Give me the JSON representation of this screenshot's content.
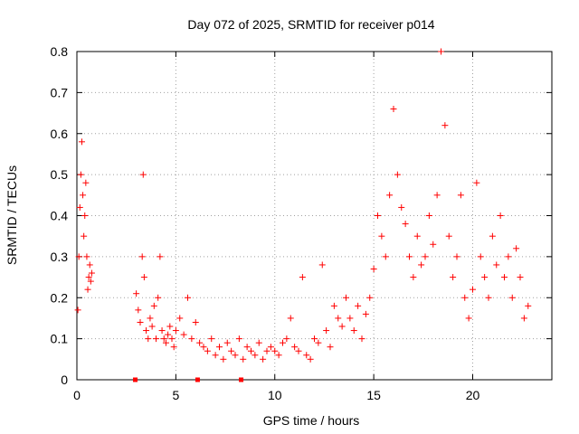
{
  "chart_data": {
    "type": "scatter",
    "title": "Day 072 of 2025, SRMTID for receiver p014",
    "xlabel": "GPS time / hours",
    "ylabel": "SRMTID / TECUs",
    "xlim": [
      0,
      24
    ],
    "ylim": [
      0,
      0.8
    ],
    "xticks": [
      0,
      5,
      10,
      15,
      20
    ],
    "xtick_labels": [
      "0",
      "5",
      "10",
      "15",
      "20"
    ],
    "yticks": [
      0,
      0.1,
      0.2,
      0.3,
      0.4,
      0.5,
      0.6,
      0.7,
      0.8
    ],
    "ytick_labels": [
      "0",
      "0.1",
      "0.2",
      "0.3",
      "0.4",
      "0.5",
      "0.6",
      "0.7",
      "0.8"
    ],
    "grid": true,
    "marker": "+",
    "color": "#ff0000",
    "gap_markers_x": [
      2.95,
      6.1,
      8.3
    ],
    "series": [
      {
        "name": "SRMTID",
        "x": [
          0.05,
          0.1,
          0.15,
          0.2,
          0.25,
          0.3,
          0.35,
          0.4,
          0.45,
          0.5,
          0.55,
          0.6,
          0.65,
          0.7,
          0.75,
          3.0,
          3.1,
          3.2,
          3.3,
          3.35,
          3.4,
          3.5,
          3.6,
          3.7,
          3.8,
          3.9,
          4.0,
          4.1,
          4.2,
          4.3,
          4.4,
          4.5,
          4.6,
          4.7,
          4.8,
          4.9,
          5.0,
          5.2,
          5.4,
          5.6,
          5.8,
          6.0,
          6.2,
          6.4,
          6.6,
          6.8,
          7.0,
          7.2,
          7.4,
          7.6,
          7.8,
          8.0,
          8.2,
          8.4,
          8.6,
          8.8,
          9.0,
          9.2,
          9.4,
          9.6,
          9.8,
          10.0,
          10.2,
          10.4,
          10.6,
          10.8,
          11.0,
          11.2,
          11.4,
          11.6,
          11.8,
          12.0,
          12.2,
          12.4,
          12.6,
          12.8,
          13.0,
          13.2,
          13.4,
          13.6,
          13.8,
          14.0,
          14.2,
          14.4,
          14.6,
          14.8,
          15.0,
          15.2,
          15.4,
          15.6,
          15.8,
          16.0,
          16.2,
          16.4,
          16.6,
          16.8,
          17.0,
          17.2,
          17.4,
          17.6,
          17.8,
          18.0,
          18.2,
          18.4,
          18.6,
          18.8,
          19.0,
          19.2,
          19.4,
          19.6,
          19.8,
          20.0,
          20.2,
          20.4,
          20.6,
          20.8,
          21.0,
          21.2,
          21.4,
          21.6,
          21.8,
          22.0,
          22.2,
          22.4,
          22.6,
          22.8
        ],
        "y": [
          0.17,
          0.3,
          0.42,
          0.5,
          0.58,
          0.45,
          0.35,
          0.4,
          0.48,
          0.3,
          0.22,
          0.25,
          0.28,
          0.24,
          0.26,
          0.21,
          0.17,
          0.14,
          0.3,
          0.5,
          0.25,
          0.12,
          0.1,
          0.15,
          0.13,
          0.18,
          0.1,
          0.2,
          0.3,
          0.12,
          0.1,
          0.09,
          0.11,
          0.13,
          0.1,
          0.08,
          0.12,
          0.15,
          0.11,
          0.2,
          0.1,
          0.14,
          0.09,
          0.08,
          0.07,
          0.1,
          0.06,
          0.08,
          0.05,
          0.09,
          0.07,
          0.06,
          0.1,
          0.05,
          0.08,
          0.07,
          0.06,
          0.09,
          0.05,
          0.07,
          0.08,
          0.07,
          0.06,
          0.09,
          0.1,
          0.15,
          0.08,
          0.07,
          0.25,
          0.06,
          0.05,
          0.1,
          0.09,
          0.28,
          0.12,
          0.08,
          0.18,
          0.15,
          0.13,
          0.2,
          0.15,
          0.12,
          0.18,
          0.1,
          0.16,
          0.2,
          0.27,
          0.4,
          0.35,
          0.3,
          0.45,
          0.66,
          0.5,
          0.42,
          0.38,
          0.3,
          0.25,
          0.35,
          0.28,
          0.3,
          0.4,
          0.33,
          0.45,
          0.8,
          0.62,
          0.35,
          0.25,
          0.3,
          0.45,
          0.2,
          0.15,
          0.22,
          0.48,
          0.3,
          0.25,
          0.2,
          0.35,
          0.28,
          0.4,
          0.25,
          0.3,
          0.2,
          0.32,
          0.25,
          0.15,
          0.18
        ]
      }
    ]
  }
}
